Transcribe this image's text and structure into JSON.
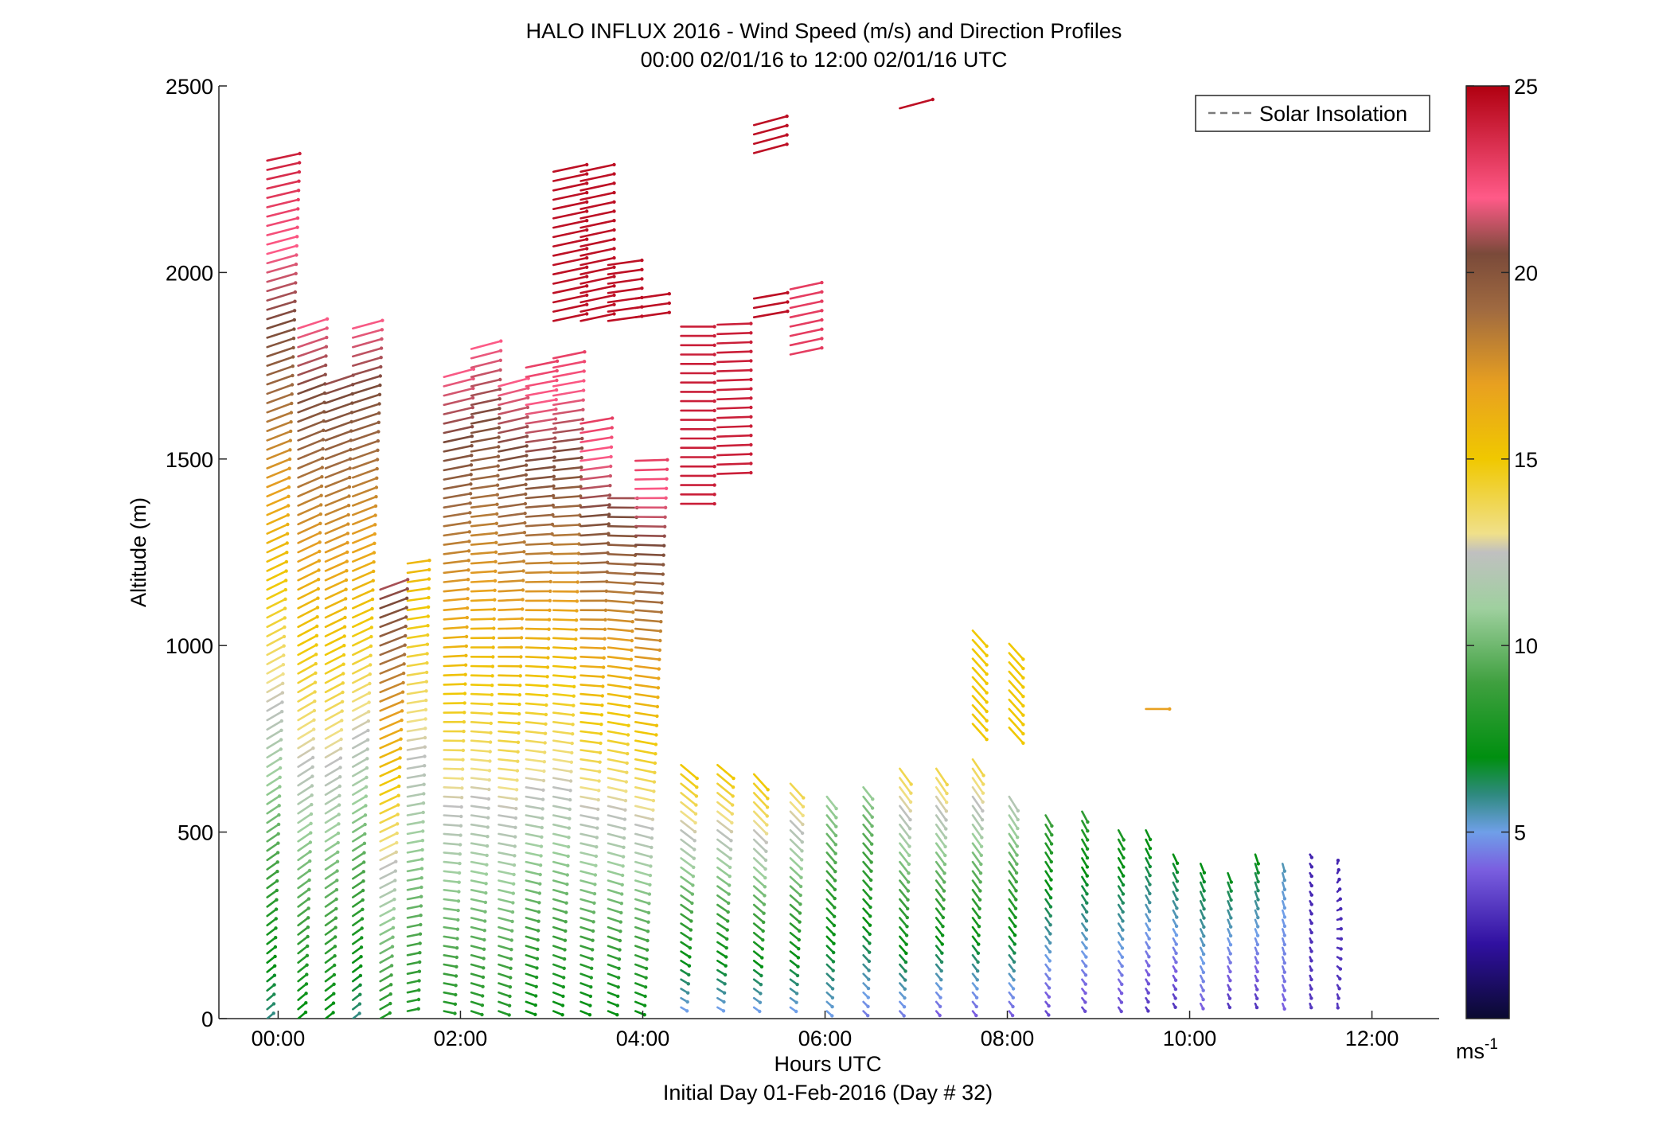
{
  "chart_data": {
    "type": "quiver",
    "title": "HALO INFLUX 2016 - Wind Speed (m/s) and Direction Profiles",
    "subtitle": "00:00 02/01/16 to 12:00 02/01/16  UTC",
    "xlabel": "Hours UTC",
    "xlabel2": "Initial Day 01-Feb-2016 (Day # 32)",
    "ylabel": "Altitude (m)",
    "xlim": [
      -0.65,
      12.65
    ],
    "ylim": [
      0,
      2500
    ],
    "x_ticks": [
      0,
      2,
      4,
      6,
      8,
      10,
      12
    ],
    "x_tick_labels": [
      "00:00",
      "02:00",
      "04:00",
      "06:00",
      "08:00",
      "10:00",
      "12:00"
    ],
    "y_ticks": [
      0,
      500,
      1000,
      1500,
      2000,
      2500
    ],
    "y_tick_labels": [
      "0",
      "500",
      "1000",
      "1500",
      "2000",
      "2500"
    ],
    "legend": {
      "entries": [
        "Solar Insolation"
      ],
      "placement": "top-right"
    },
    "colorbar": {
      "min": 0,
      "max": 25,
      "ticks": [
        5,
        10,
        15,
        20,
        25
      ],
      "tick_labels": [
        "5",
        "10",
        "15",
        "20",
        "25"
      ],
      "unit_base": "ms",
      "unit_exp": "-1",
      "colormap": [
        [
          0,
          "#0a0a30"
        ],
        [
          2,
          "#3010a0"
        ],
        [
          4,
          "#7a5fe0"
        ],
        [
          5,
          "#6f9fe8"
        ],
        [
          6,
          "#2f8a80"
        ],
        [
          7,
          "#008f10"
        ],
        [
          9,
          "#3fa03f"
        ],
        [
          11,
          "#9fd09f"
        ],
        [
          12.5,
          "#c0c0c0"
        ],
        [
          13,
          "#f0e08a"
        ],
        [
          15,
          "#f0c800"
        ],
        [
          17,
          "#e8a020"
        ],
        [
          19,
          "#a06a40"
        ],
        [
          20.5,
          "#7a4a3a"
        ],
        [
          22,
          "#ff5a88"
        ],
        [
          25,
          "#b00010"
        ]
      ]
    },
    "profiles": [
      {
        "t": -0.12,
        "z0": 0,
        "z1": 2310,
        "s0": 6,
        "s1": 24,
        "d0": 230,
        "d1": 258
      },
      {
        "t": 0.22,
        "z0": 0,
        "z1": 1860,
        "s0": 7,
        "s1": 22,
        "d0": 230,
        "d1": 252
      },
      {
        "t": 0.52,
        "z0": 0,
        "z1": 1720,
        "s0": 7,
        "s1": 21,
        "d0": 232,
        "d1": 252
      },
      {
        "t": 0.82,
        "z0": 0,
        "z1": 1860,
        "s0": 6,
        "s1": 22,
        "d0": 232,
        "d1": 255
      },
      {
        "t": 1.12,
        "z0": 0,
        "z1": 1150,
        "s0": 8,
        "s1": 21,
        "d0": 240,
        "d1": 250
      },
      {
        "t": 1.42,
        "z0": 20,
        "z1": 1240,
        "s0": 8,
        "s1": 16,
        "d0": 258,
        "d1": 262
      },
      {
        "t": 1.82,
        "z0": 20,
        "z1": 1730,
        "s0": 8,
        "s1": 22,
        "d0": 282,
        "d1": 255
      },
      {
        "t": 2.12,
        "z0": 20,
        "z1": 1800,
        "s0": 8,
        "s1": 22,
        "d0": 288,
        "d1": 255
      },
      {
        "t": 2.42,
        "z0": 20,
        "z1": 1700,
        "s0": 8,
        "s1": 22,
        "d0": 290,
        "d1": 255
      },
      {
        "t": 2.72,
        "z0": 20,
        "z1": 1760,
        "s0": 7,
        "s1": 23,
        "d0": 290,
        "d1": 258
      },
      {
        "t": 3.02,
        "z0": 20,
        "z1": 1790,
        "s0": 7,
        "s1": 23,
        "d0": 292,
        "d1": 258
      },
      {
        "t": 3.32,
        "z0": 20,
        "z1": 1600,
        "s0": 7,
        "s1": 23,
        "d0": 292,
        "d1": 260
      },
      {
        "t": 3.62,
        "z0": 20,
        "z1": 1400,
        "s0": 7,
        "s1": 21,
        "d0": 292,
        "d1": 270
      },
      {
        "t": 3.92,
        "z0": 20,
        "z1": 1500,
        "s0": 7,
        "s1": 23,
        "d0": 292,
        "d1": 268
      },
      {
        "t": 4.42,
        "z0": 30,
        "z1": 680,
        "s0": 5,
        "s1": 15,
        "d0": 300,
        "d1": 310
      },
      {
        "t": 4.82,
        "z0": 30,
        "z1": 680,
        "s0": 5,
        "s1": 15,
        "d0": 300,
        "d1": 310
      },
      {
        "t": 5.22,
        "z0": 30,
        "z1": 660,
        "s0": 5,
        "s1": 15,
        "d0": 305,
        "d1": 318
      },
      {
        "t": 5.62,
        "z0": 30,
        "z1": 640,
        "s0": 5,
        "s1": 14,
        "d0": 305,
        "d1": 318
      },
      {
        "t": 6.02,
        "z0": 20,
        "z1": 600,
        "s0": 5,
        "s1": 11,
        "d0": 312,
        "d1": 322
      },
      {
        "t": 6.42,
        "z0": 20,
        "z1": 640,
        "s0": 4.5,
        "s1": 11,
        "d0": 315,
        "d1": 322
      },
      {
        "t": 6.82,
        "z0": 20,
        "z1": 680,
        "s0": 4.5,
        "s1": 14,
        "d0": 318,
        "d1": 324
      },
      {
        "t": 7.22,
        "z0": 20,
        "z1": 680,
        "s0": 4,
        "s1": 14,
        "d0": 320,
        "d1": 326
      },
      {
        "t": 7.62,
        "z0": 20,
        "z1": 700,
        "s0": 4,
        "s1": 14,
        "d0": 322,
        "d1": 326
      },
      {
        "t": 8.02,
        "z0": 20,
        "z1": 600,
        "s0": 4,
        "s1": 12,
        "d0": 322,
        "d1": 328
      },
      {
        "t": 8.42,
        "z0": 20,
        "z1": 560,
        "s0": 3.5,
        "s1": 9,
        "d0": 322,
        "d1": 330
      },
      {
        "t": 8.82,
        "z0": 30,
        "z1": 560,
        "s0": 3.5,
        "s1": 8.5,
        "d0": 322,
        "d1": 332
      },
      {
        "t": 9.22,
        "z0": 30,
        "z1": 520,
        "s0": 3.5,
        "s1": 8,
        "d0": 325,
        "d1": 332
      },
      {
        "t": 9.52,
        "z0": 30,
        "z1": 520,
        "s0": 3,
        "s1": 7.5,
        "d0": 328,
        "d1": 335
      },
      {
        "t": 9.82,
        "z0": 40,
        "z1": 440,
        "s0": 3,
        "s1": 7,
        "d0": 330,
        "d1": 335
      },
      {
        "t": 10.12,
        "z0": 40,
        "z1": 420,
        "s0": 4,
        "s1": 7,
        "d0": 333,
        "d1": 338
      },
      {
        "t": 10.42,
        "z0": 40,
        "z1": 400,
        "s0": 3,
        "s1": 7,
        "d0": 335,
        "d1": 340
      },
      {
        "t": 10.72,
        "z0": 40,
        "z1": 440,
        "s0": 3,
        "s1": 7,
        "d0": 337,
        "d1": 342
      },
      {
        "t": 11.02,
        "z0": 40,
        "z1": 420,
        "s0": 4,
        "s1": 5.5,
        "d0": 340,
        "d1": 345
      },
      {
        "t": 11.32,
        "z0": 40,
        "z1": 440,
        "s0": 3,
        "s1": 2.5,
        "d0": 342,
        "d1": 330
      },
      {
        "t": 11.62,
        "z0": 40,
        "z1": 420,
        "s0": 3,
        "s1": 2.5,
        "d0": 352,
        "d1": 190
      }
    ],
    "upper_gaps": [
      {
        "t": 3.02,
        "z0": 1870,
        "z1": 2290,
        "s": 24.5,
        "d": 258
      },
      {
        "t": 3.32,
        "z0": 1870,
        "z1": 2280,
        "s": 24.5,
        "d": 258
      },
      {
        "t": 3.62,
        "z0": 1870,
        "z1": 2040,
        "s": 24.5,
        "d": 262
      },
      {
        "t": 3.92,
        "z0": 1880,
        "z1": 1950,
        "s": 24.5,
        "d": 262
      },
      {
        "t": 4.42,
        "z0": 1380,
        "z1": 1860,
        "s": 24,
        "d": 270
      },
      {
        "t": 4.82,
        "z0": 1460,
        "z1": 1870,
        "s": 24,
        "d": 268
      },
      {
        "t": 5.22,
        "z0": 1880,
        "z1": 1950,
        "s": 24.5,
        "d": 260
      },
      {
        "t": 5.62,
        "z0": 1780,
        "z1": 1960,
        "s": 23,
        "d": 258
      },
      {
        "t": 5.22,
        "z0": 2320,
        "z1": 2410,
        "s": 24.5,
        "d": 255
      },
      {
        "t": 6.82,
        "z0": 2440,
        "z1": 2440,
        "s": 24.5,
        "d": 255
      },
      {
        "t": 7.62,
        "z0": 790,
        "z1": 1040,
        "s": 15,
        "d": 318
      },
      {
        "t": 8.02,
        "z0": 780,
        "z1": 1020,
        "s": 15,
        "d": 318
      },
      {
        "t": 9.52,
        "z0": 830,
        "z1": 830,
        "s": 17,
        "d": 270
      }
    ]
  }
}
